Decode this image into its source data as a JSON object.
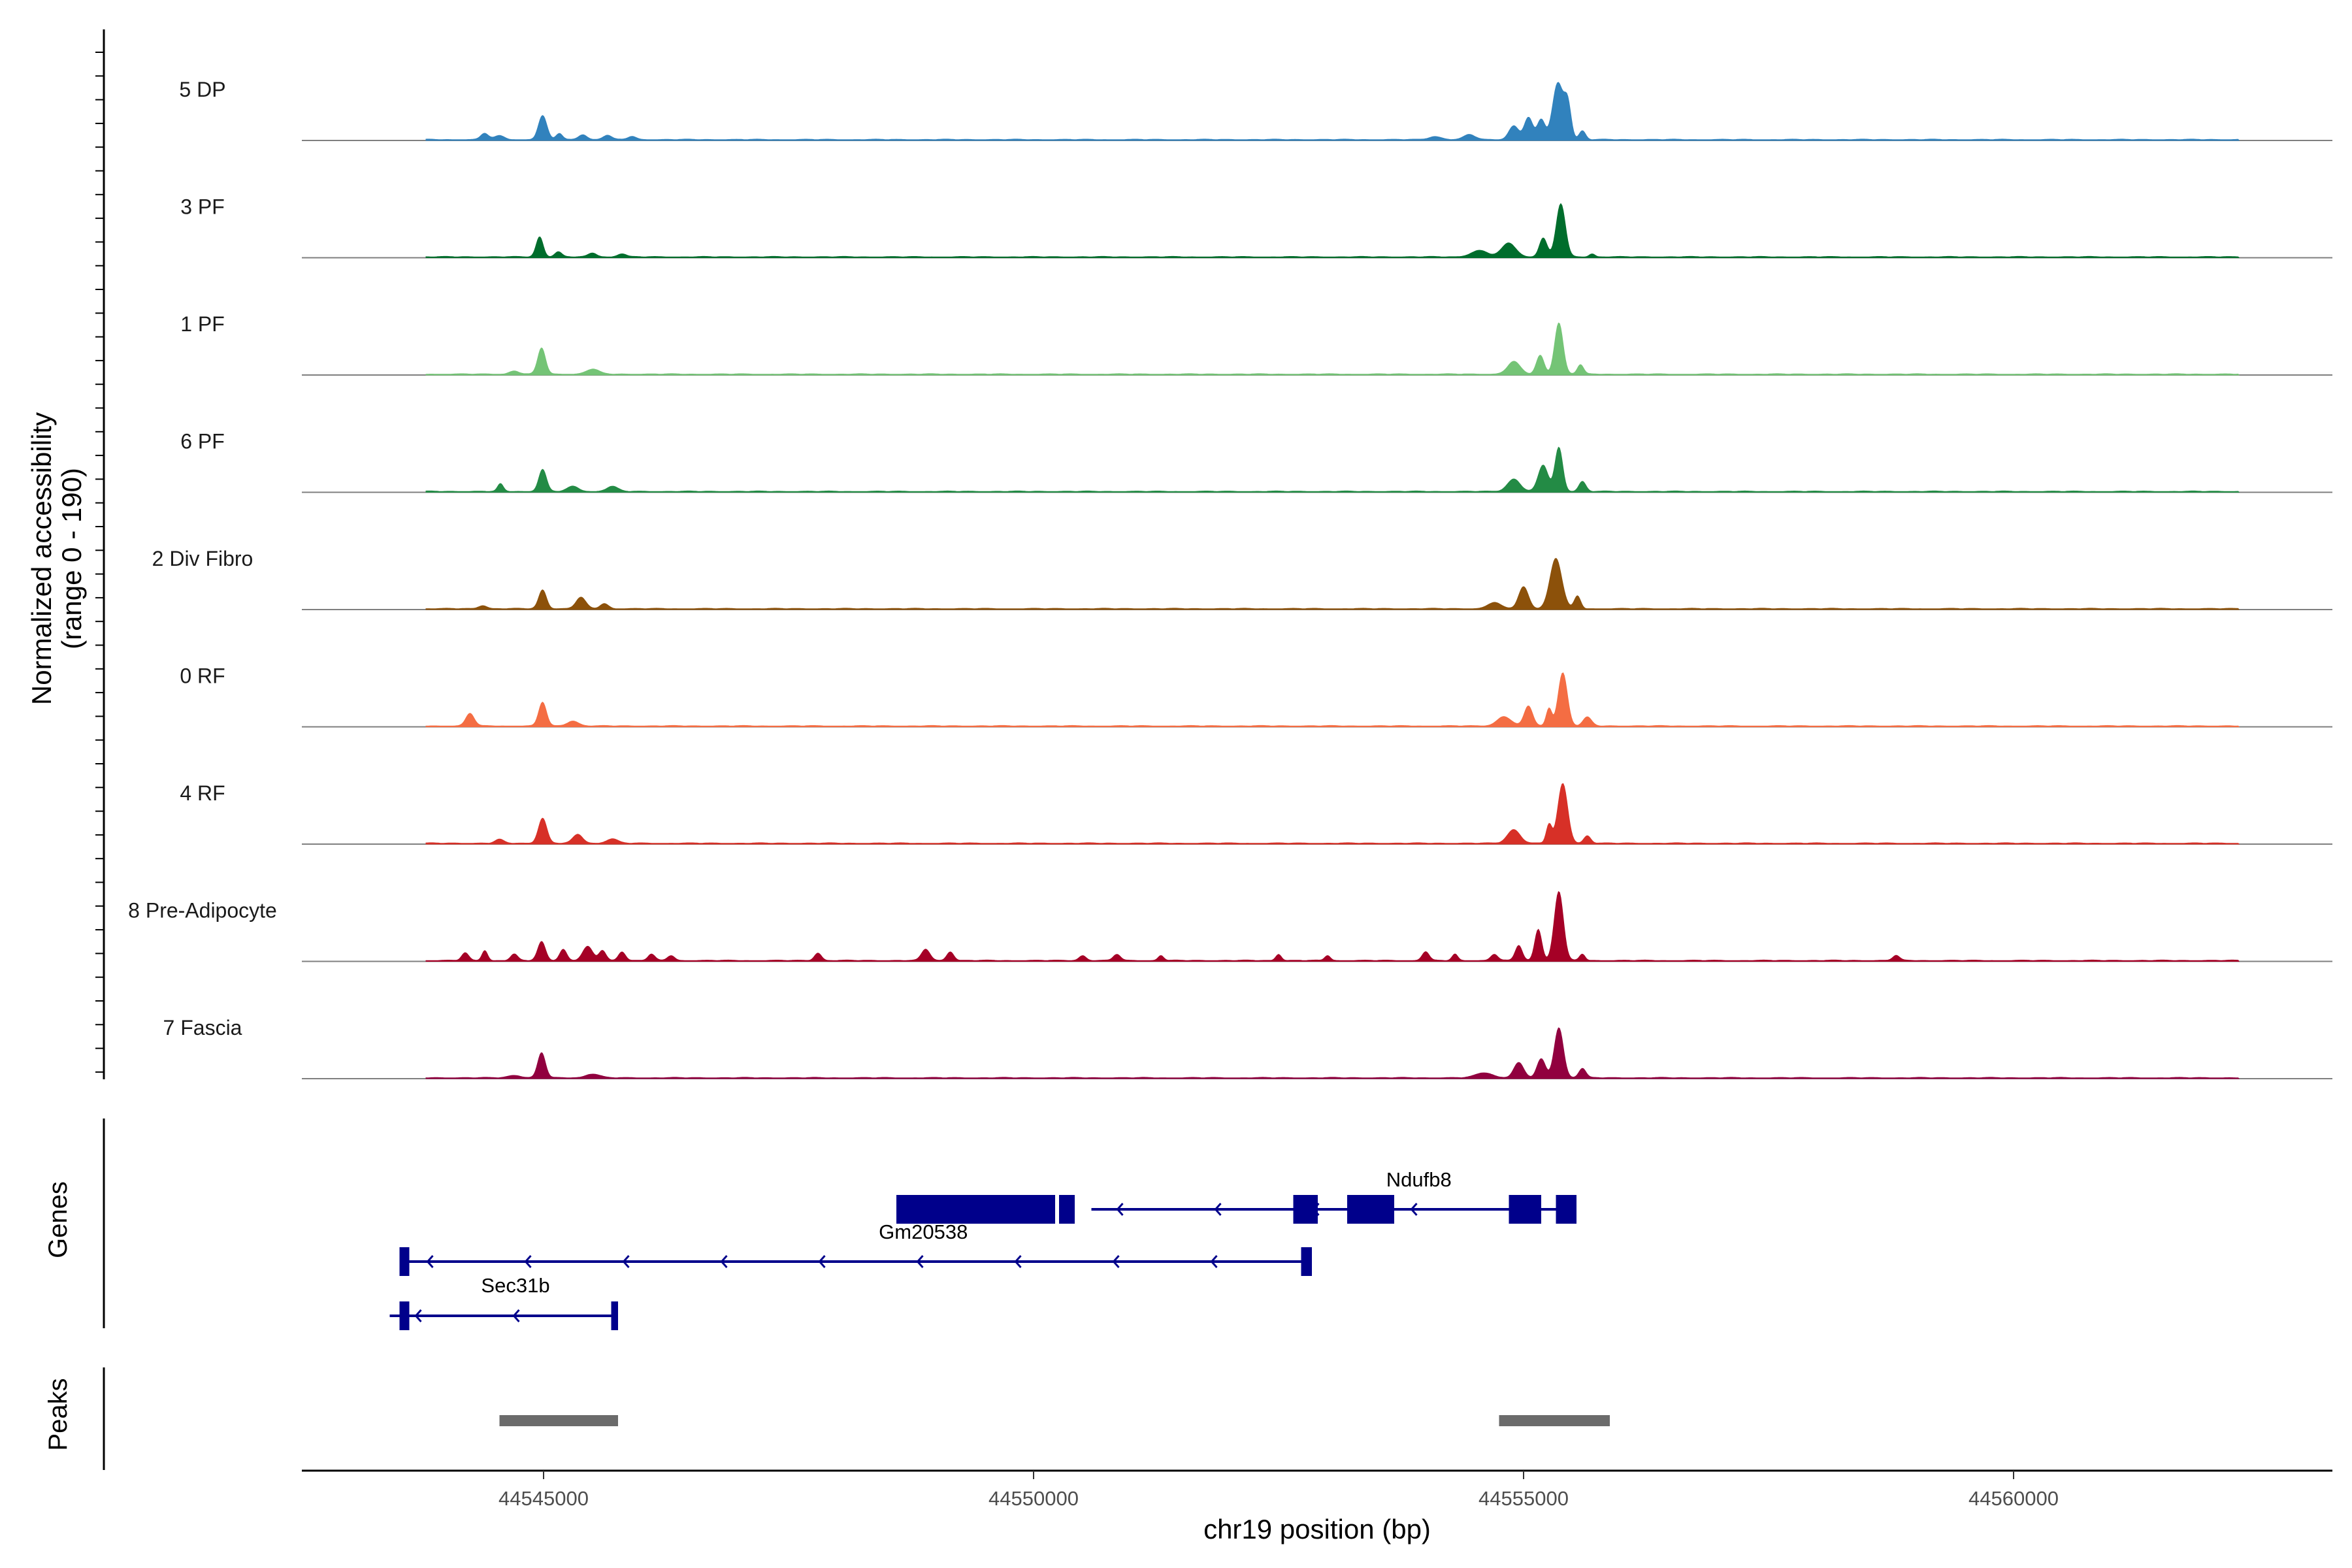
{
  "chart_data": {
    "type": "area",
    "title": "",
    "xlabel": "chr19 position (bp)",
    "ylabel": "Normalized accessibility",
    "ylabel_sub": "(range 0 - 190)",
    "xlim": [
      44542500,
      44563300
    ],
    "ylim": [
      0,
      190
    ],
    "x_ticks": [
      {
        "value": 44545000,
        "label": "44545000"
      },
      {
        "value": 44550000,
        "label": "44550000"
      },
      {
        "value": 44555000,
        "label": "44555000"
      },
      {
        "value": 44560000,
        "label": "44560000"
      }
    ],
    "series": [
      {
        "name": "5 DP",
        "color": "#3182bd",
        "peaks": [
          [
            44544400,
            10,
            55
          ],
          [
            44544550,
            6,
            70
          ],
          [
            44544990,
            38,
            60
          ],
          [
            44545160,
            10,
            45
          ],
          [
            44545400,
            8,
            60
          ],
          [
            44545650,
            7,
            60
          ],
          [
            44545900,
            5,
            60
          ],
          [
            44554100,
            5,
            90
          ],
          [
            44554450,
            8,
            80
          ],
          [
            44554900,
            22,
            70
          ],
          [
            44555050,
            35,
            60
          ],
          [
            44555180,
            32,
            55
          ],
          [
            44555350,
            90,
            75
          ],
          [
            44555450,
            55,
            50
          ],
          [
            44555600,
            14,
            45
          ]
        ]
      },
      {
        "name": "3 PF",
        "color": "#006d2c",
        "peaks": [
          [
            44544960,
            32,
            50
          ],
          [
            44545150,
            8,
            50
          ],
          [
            44545500,
            6,
            60
          ],
          [
            44545800,
            5,
            60
          ],
          [
            44554550,
            10,
            120
          ],
          [
            44554850,
            22,
            100
          ],
          [
            44555200,
            30,
            55
          ],
          [
            44555380,
            85,
            65
          ],
          [
            44555700,
            5,
            40
          ]
        ]
      },
      {
        "name": "1 PF",
        "color": "#74c476",
        "peaks": [
          [
            44544980,
            42,
            55
          ],
          [
            44544700,
            5,
            70
          ],
          [
            44545500,
            8,
            90
          ],
          [
            44554900,
            20,
            90
          ],
          [
            44555170,
            30,
            55
          ],
          [
            44555360,
            82,
            60
          ],
          [
            44555580,
            15,
            45
          ]
        ]
      },
      {
        "name": "6 PF",
        "color": "#238b45",
        "peaks": [
          [
            44544560,
            12,
            40
          ],
          [
            44544990,
            35,
            55
          ],
          [
            44545300,
            8,
            80
          ],
          [
            44545700,
            8,
            80
          ],
          [
            44554900,
            20,
            90
          ],
          [
            44555200,
            42,
            70
          ],
          [
            44555360,
            70,
            55
          ],
          [
            44555600,
            16,
            50
          ]
        ]
      },
      {
        "name": "2 Div Fibro",
        "color": "#8c510a",
        "peaks": [
          [
            44544380,
            5,
            60
          ],
          [
            44544990,
            30,
            55
          ],
          [
            44545380,
            18,
            70
          ],
          [
            44545620,
            8,
            60
          ],
          [
            44554700,
            10,
            90
          ],
          [
            44555000,
            35,
            70
          ],
          [
            44555330,
            80,
            85
          ],
          [
            44555550,
            20,
            45
          ]
        ]
      },
      {
        "name": "0 RF",
        "color": "#f46d43",
        "peaks": [
          [
            44544250,
            20,
            60
          ],
          [
            44544990,
            38,
            55
          ],
          [
            44545300,
            8,
            80
          ],
          [
            44554800,
            15,
            100
          ],
          [
            44555050,
            32,
            60
          ],
          [
            44555260,
            28,
            40
          ],
          [
            44555400,
            85,
            65
          ],
          [
            44555650,
            14,
            60
          ]
        ]
      },
      {
        "name": "4 RF",
        "color": "#d73027",
        "peaks": [
          [
            44544550,
            6,
            60
          ],
          [
            44544990,
            40,
            60
          ],
          [
            44545350,
            14,
            70
          ],
          [
            44545700,
            7,
            80
          ],
          [
            44554900,
            22,
            90
          ],
          [
            44555260,
            30,
            40
          ],
          [
            44555400,
            95,
            70
          ],
          [
            44555650,
            12,
            50
          ]
        ]
      },
      {
        "name": "8 Pre-Adipocyte",
        "color": "#a50026",
        "peaks": [
          [
            44544200,
            12,
            50
          ],
          [
            44544400,
            16,
            40
          ],
          [
            44544700,
            10,
            50
          ],
          [
            44544980,
            30,
            55
          ],
          [
            44545200,
            18,
            50
          ],
          [
            44545450,
            22,
            70
          ],
          [
            44545600,
            16,
            50
          ],
          [
            44545800,
            14,
            50
          ],
          [
            44546100,
            10,
            50
          ],
          [
            44546300,
            8,
            50
          ],
          [
            44547800,
            12,
            50
          ],
          [
            44548900,
            18,
            60
          ],
          [
            44549150,
            14,
            50
          ],
          [
            44550500,
            8,
            50
          ],
          [
            44550850,
            10,
            50
          ],
          [
            44551300,
            8,
            40
          ],
          [
            44552500,
            10,
            40
          ],
          [
            44553000,
            8,
            40
          ],
          [
            44554000,
            14,
            50
          ],
          [
            44554300,
            10,
            40
          ],
          [
            44554700,
            10,
            50
          ],
          [
            44554950,
            24,
            50
          ],
          [
            44555150,
            50,
            50
          ],
          [
            44555360,
            110,
            65
          ],
          [
            44555600,
            10,
            40
          ],
          [
            44558800,
            8,
            50
          ]
        ]
      },
      {
        "name": "7 Fascia",
        "color": "#91003f",
        "peaks": [
          [
            44544980,
            40,
            55
          ],
          [
            44544700,
            4,
            90
          ],
          [
            44545500,
            6,
            100
          ],
          [
            44554600,
            8,
            120
          ],
          [
            44554950,
            24,
            70
          ],
          [
            44555180,
            30,
            60
          ],
          [
            44555360,
            80,
            65
          ],
          [
            44555600,
            15,
            50
          ]
        ]
      }
    ],
    "genes": [
      {
        "name": "Ndufb8",
        "strand": "-",
        "line": [
          44550590,
          44555540
        ],
        "exons": [
          [
            44548600,
            44550220
          ],
          [
            44550260,
            44550420
          ],
          [
            44552650,
            44552900
          ],
          [
            44553200,
            44553680
          ],
          [
            44554850,
            44555180
          ],
          [
            44555330,
            44555540
          ]
        ]
      },
      {
        "name": "Gm20538",
        "strand": "-",
        "line": [
          44543550,
          44552800
        ],
        "exons": [
          [
            44543530,
            44543630
          ],
          [
            44552730,
            44552840
          ]
        ]
      },
      {
        "name": "Sec31b",
        "strand": "-",
        "line": [
          44543430,
          44545730
        ],
        "exons": [
          [
            44543530,
            44543630
          ],
          [
            44545690,
            44545760
          ]
        ]
      }
    ],
    "peak_regions": [
      [
        44544550,
        44545760
      ],
      [
        44554750,
        44555880
      ]
    ],
    "panel_titles": {
      "genes": "Genes",
      "peaks": "Peaks"
    }
  }
}
